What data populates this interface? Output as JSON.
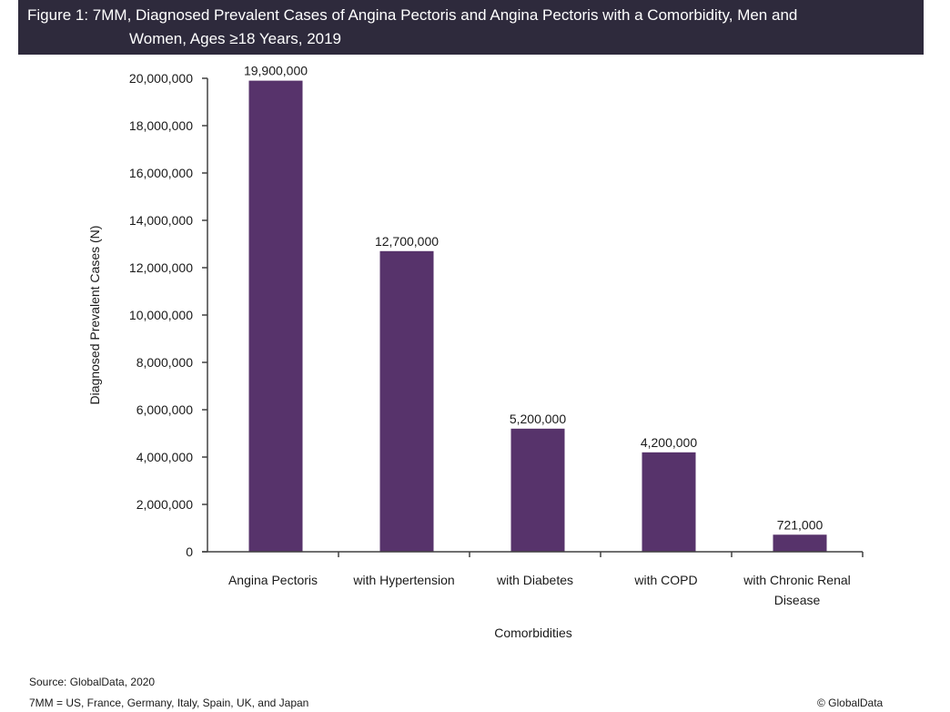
{
  "header": {
    "title_line1": "Figure 1: 7MM, Diagnosed Prevalent Cases of Angina Pectoris and Angina Pectoris with a Comorbidity, Men and",
    "title_line2": "Women, Ages ≥18 Years, 2019"
  },
  "colors": {
    "header_bg": "#2e2a3c",
    "bar": "#57336b",
    "axis": "#404040"
  },
  "chart_data": {
    "type": "bar",
    "title": "Figure 1: 7MM, Diagnosed Prevalent Cases of Angina Pectoris and Angina Pectoris with a Comorbidity, Men and Women, Ages ≥18 Years, 2019",
    "xlabel": "Comorbidities",
    "ylabel": "Diagnosed Prevalent Cases (N)",
    "categories": [
      [
        "Angina Pectoris"
      ],
      [
        "with Hypertension"
      ],
      [
        "with Diabetes"
      ],
      [
        "with COPD"
      ],
      [
        "with Chronic Renal",
        "Disease"
      ]
    ],
    "values": [
      19900000,
      12700000,
      5200000,
      4200000,
      721000
    ],
    "data_labels": [
      "19,900,000",
      "12,700,000",
      "5,200,000",
      "4,200,000",
      "721,000"
    ],
    "ylim": [
      0,
      20000000
    ],
    "yticks": [
      0,
      2000000,
      4000000,
      6000000,
      8000000,
      10000000,
      12000000,
      14000000,
      16000000,
      18000000,
      20000000
    ],
    "ytick_labels": [
      "0",
      "2,000,000",
      "4,000,000",
      "6,000,000",
      "8,000,000",
      "10,000,000",
      "12,000,000",
      "14,000,000",
      "16,000,000",
      "18,000,000",
      "20,000,000"
    ],
    "grid": false,
    "legend": "none"
  },
  "footer": {
    "source": "Source: GlobalData, 2020",
    "note": "7MM = US, France, Germany, Italy, Spain, UK, and Japan",
    "copyright": "© GlobalData"
  }
}
